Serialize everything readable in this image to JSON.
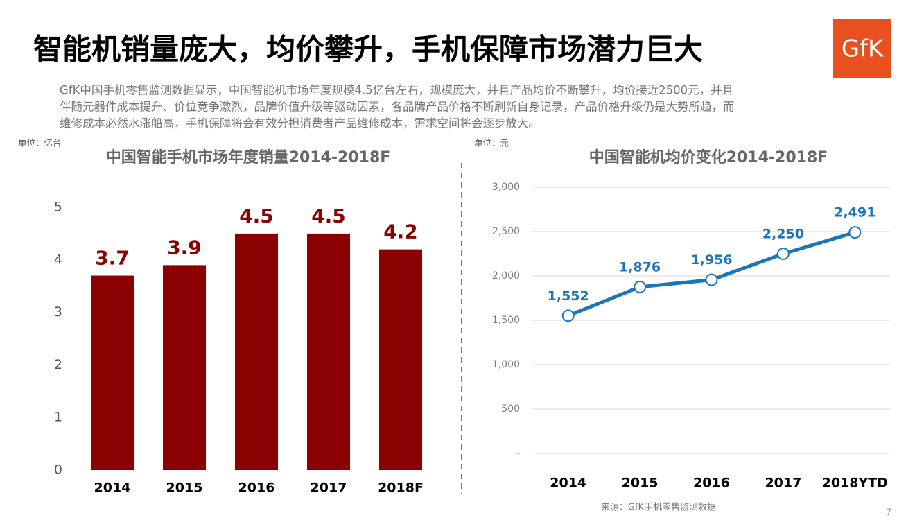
{
  "title": "智能机销量庞大，均价攀升，手机保障市场潜力巨大",
  "logo": "GfK",
  "body": [
    "GfK中国手机零售监测数据显示，中国智能机市场年度规模4.5亿台左右，规模庞大，并且产品均价不断攀升，均价接近2500元，并且",
    "伴随元器件成本提升、价位竞争激烈，品牌价值升级等驱动因素，各品牌产品价格不断刷新自身记录，产品价格升级仍是大势所趋，而",
    "维修成本必然水涨船高，手机保障将会有效分担消费者产品维修成本，需求空间将会逐步放大。"
  ],
  "source": "来源：GfK手机零售监测数据",
  "page_number": "7",
  "chart_data": [
    {
      "type": "bar",
      "title": "中国智能手机市场年度销量2014-2018F",
      "unit": "单位：亿台",
      "categories": [
        "2014",
        "2015",
        "2016",
        "2017",
        "2018F"
      ],
      "values": [
        3.7,
        3.9,
        4.5,
        4.5,
        4.2
      ],
      "color": "#8b0000",
      "ylim": [
        0,
        5
      ],
      "yticks": [
        0,
        1,
        2,
        3,
        4,
        5
      ],
      "grid": false
    },
    {
      "type": "line",
      "title": "中国智能机均价变化2014-2018F",
      "unit": "单位：元",
      "categories": [
        "2014",
        "2015",
        "2016",
        "2017",
        "2018YTD"
      ],
      "values": [
        1552,
        1876,
        1956,
        2250,
        2491
      ],
      "value_labels": [
        "1,552",
        "1,876",
        "1,956",
        "2,250",
        "2,491"
      ],
      "color": "#1a75bb",
      "ylim": [
        0,
        3000
      ],
      "yticks": [
        {
          "value": 0,
          "label": "-"
        },
        500,
        {
          "value": 1000,
          "label": "1,000"
        },
        {
          "value": 1500,
          "label": "1,500"
        },
        {
          "value": 2000,
          "label": "2,000"
        },
        {
          "value": 2500,
          "label": "2,500"
        },
        {
          "value": 3000,
          "label": "3,000"
        }
      ],
      "grid": true
    }
  ]
}
